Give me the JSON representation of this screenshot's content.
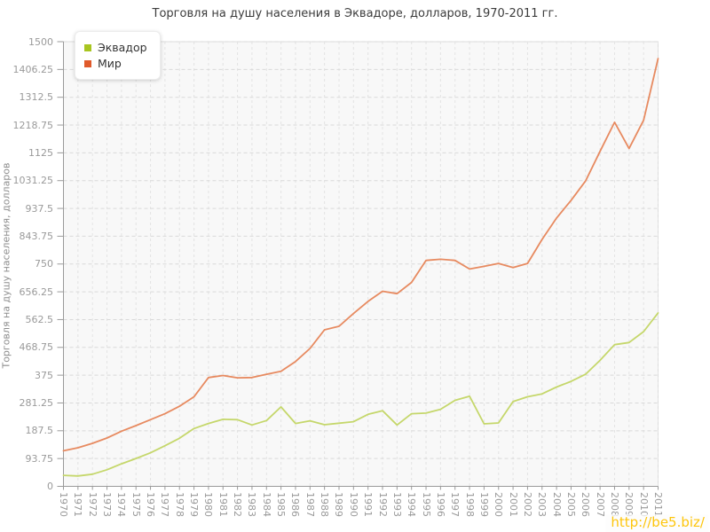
{
  "title": "Торговля на душу населения в Эквадоре, долларов, 1970-2011 гг.",
  "y_axis_title": "Торговля на душу населения, долларов",
  "watermark": "http://be5.biz/",
  "colors": {
    "plot_background": "#f8f8f8",
    "h_gridline": "#d9d9d9",
    "v_gridline": "#e3e3e3",
    "axis_line": "#9a9a9a",
    "plot_border": "#dcdcdc"
  },
  "chart_data": {
    "type": "line",
    "title": "Торговля на душу населения в Эквадоре, долларов, 1970-2011 гг.",
    "xlabel": "",
    "ylabel": "Торговля на душу населения, долларов",
    "x": [
      1970,
      1971,
      1972,
      1973,
      1974,
      1975,
      1976,
      1977,
      1978,
      1979,
      1980,
      1981,
      1982,
      1983,
      1984,
      1985,
      1986,
      1987,
      1988,
      1989,
      1990,
      1991,
      1992,
      1993,
      1994,
      1995,
      1996,
      1997,
      1998,
      1999,
      2000,
      2001,
      2002,
      2003,
      2004,
      2005,
      2006,
      2007,
      2008,
      2009,
      2010,
      2011
    ],
    "series": [
      {
        "name": "Эквадор",
        "line_color": "#c5d76b",
        "swatch_color": "#a8c520",
        "values": [
          37,
          35,
          41,
          56,
          76,
          94,
          113,
          137,
          162,
          195,
          212,
          226,
          225,
          207,
          222,
          268,
          212,
          221,
          208,
          213,
          218,
          243,
          255,
          207,
          245,
          247,
          260,
          290,
          304,
          211,
          214,
          286,
          302,
          312,
          335,
          354,
          378,
          425,
          478,
          485,
          522,
          585
        ]
      },
      {
        "name": "Мир",
        "line_color": "#e78a60",
        "swatch_color": "#e05a2b",
        "values": [
          120,
          130,
          145,
          163,
          186,
          205,
          225,
          245,
          270,
          302,
          367,
          374,
          366,
          367,
          378,
          388,
          421,
          465,
          528,
          540,
          583,
          624,
          658,
          650,
          688,
          762,
          766,
          762,
          733,
          742,
          752,
          738,
          752,
          833,
          905,
          965,
          1030,
          1130,
          1228,
          1140,
          1235,
          1443
        ]
      }
    ],
    "ylim": [
      0,
      1500
    ],
    "ytick_step": 93.75,
    "grid": true,
    "legend_position": "top-left"
  }
}
